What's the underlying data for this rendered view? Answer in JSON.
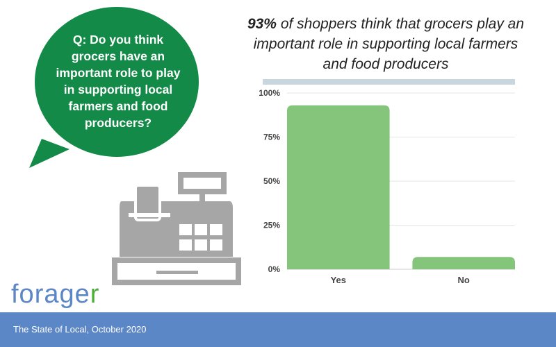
{
  "question": "Q: Do you think grocers have an important role to play in supporting local farmers and food producers?",
  "headline": {
    "bold": "93%",
    "rest": " of shoppers think that grocers play an important role in supporting local farmers and food producers"
  },
  "logo": "forager",
  "footer": "The State of Local, October 2020",
  "colors": {
    "bubble": "#138a47",
    "bar": "#85c47b",
    "footer": "#5b87c7",
    "register": "#a6a6a6"
  },
  "chart_data": {
    "type": "bar",
    "categories": [
      "Yes",
      "No"
    ],
    "values": [
      93,
      7
    ],
    "ylim": [
      0,
      100
    ],
    "yticks": [
      "0%",
      "25%",
      "50%",
      "75%",
      "100%"
    ],
    "grid": true,
    "title": "",
    "xlabel": "",
    "ylabel": ""
  }
}
